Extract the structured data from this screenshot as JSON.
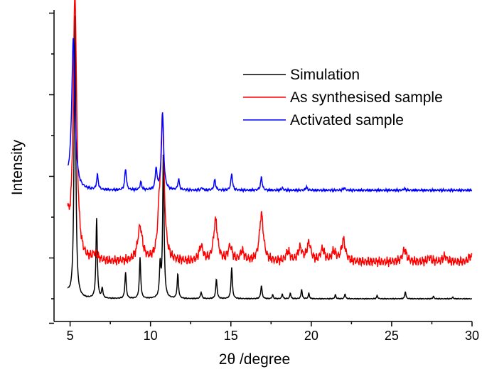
{
  "chart_data": {
    "type": "line",
    "title": "",
    "xlabel": "2θ /degree",
    "ylabel": "Intensity",
    "xlim": [
      4,
      30
    ],
    "x_ticks": [
      5,
      10,
      15,
      20,
      25,
      30
    ],
    "y_ticks_labeled": false,
    "legend_position": "top-right",
    "series": [
      {
        "name": "Simulation",
        "color": "#000000",
        "baseline": 0.0,
        "peaks": [
          [
            5.3,
            3.55,
            0.06
          ],
          [
            6.65,
            0.98,
            0.05
          ],
          [
            7.0,
            0.12,
            0.05
          ],
          [
            8.45,
            0.32,
            0.05
          ],
          [
            9.35,
            0.5,
            0.05
          ],
          [
            10.6,
            0.4,
            0.05
          ],
          [
            10.8,
            1.8,
            0.05
          ],
          [
            11.7,
            0.3,
            0.05
          ],
          [
            13.15,
            0.08,
            0.05
          ],
          [
            14.1,
            0.24,
            0.05
          ],
          [
            15.05,
            0.38,
            0.05
          ],
          [
            16.9,
            0.16,
            0.05
          ],
          [
            17.6,
            0.05,
            0.04
          ],
          [
            18.2,
            0.06,
            0.04
          ],
          [
            18.7,
            0.07,
            0.04
          ],
          [
            19.4,
            0.12,
            0.04
          ],
          [
            19.85,
            0.07,
            0.04
          ],
          [
            21.5,
            0.05,
            0.04
          ],
          [
            22.1,
            0.06,
            0.04
          ],
          [
            24.1,
            0.04,
            0.04
          ],
          [
            25.85,
            0.09,
            0.04
          ],
          [
            27.6,
            0.03,
            0.04
          ],
          [
            28.8,
            0.02,
            0.04
          ]
        ],
        "start_value": 0.08
      },
      {
        "name": "As synthesised sample",
        "color": "#ff0000",
        "baseline": 0.45,
        "peaks": [
          [
            5.3,
            3.25,
            0.13
          ],
          [
            6.55,
            0.08,
            0.2
          ],
          [
            9.35,
            0.42,
            0.18
          ],
          [
            10.55,
            0.45,
            0.12
          ],
          [
            10.75,
            1.7,
            0.12
          ],
          [
            13.15,
            0.18,
            0.15
          ],
          [
            14.05,
            0.5,
            0.15
          ],
          [
            14.95,
            0.18,
            0.15
          ],
          [
            15.7,
            0.12,
            0.15
          ],
          [
            16.9,
            0.58,
            0.15
          ],
          [
            18.55,
            0.12,
            0.15
          ],
          [
            19.3,
            0.16,
            0.15
          ],
          [
            19.85,
            0.22,
            0.15
          ],
          [
            20.7,
            0.15,
            0.15
          ],
          [
            21.4,
            0.12,
            0.15
          ],
          [
            22.0,
            0.26,
            0.15
          ],
          [
            25.8,
            0.15,
            0.15
          ],
          [
            27.35,
            0.05,
            0.15
          ],
          [
            28.3,
            0.07,
            0.15
          ],
          [
            29.9,
            0.07,
            0.15
          ]
        ],
        "start_value": 0.92
      },
      {
        "name": "Activated sample",
        "color": "#0000ff",
        "baseline": 1.33,
        "peaks": [
          [
            5.2,
            1.85,
            0.12
          ],
          [
            6.7,
            0.18,
            0.06
          ],
          [
            8.45,
            0.26,
            0.06
          ],
          [
            9.4,
            0.1,
            0.06
          ],
          [
            10.35,
            0.26,
            0.06
          ],
          [
            10.75,
            0.94,
            0.08
          ],
          [
            11.75,
            0.13,
            0.06
          ],
          [
            13.2,
            0.03,
            0.06
          ],
          [
            14.0,
            0.13,
            0.06
          ],
          [
            15.05,
            0.2,
            0.06
          ],
          [
            16.9,
            0.16,
            0.06
          ],
          [
            18.2,
            0.03,
            0.06
          ],
          [
            19.7,
            0.04,
            0.06
          ],
          [
            22.05,
            0.03,
            0.06
          ],
          [
            25.8,
            0.02,
            0.06
          ]
        ],
        "start_value": 1.43
      }
    ]
  }
}
